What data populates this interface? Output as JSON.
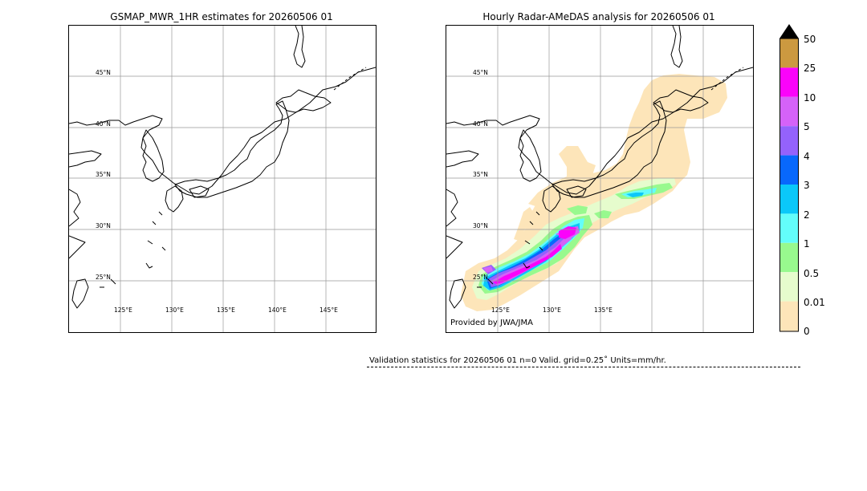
{
  "left_panel": {
    "title": "GSMAP_MWR_1HR estimates for 20260506 01",
    "lat_labels": [
      "45°N",
      "40°N",
      "35°N",
      "30°N",
      "25°N"
    ],
    "lon_labels": [
      "125°E",
      "130°E",
      "135°E",
      "140°E",
      "145°E"
    ]
  },
  "right_panel": {
    "title": "Hourly Radar-AMeDAS analysis for 20260506 01",
    "credit": "Provided by JWA/JMA",
    "lat_labels": [
      "45°N",
      "40°N",
      "35°N",
      "30°N",
      "25°N"
    ],
    "lon_labels": [
      "125°E",
      "130°E",
      "135°E"
    ]
  },
  "colorbar": {
    "labels": [
      "50",
      "25",
      "10",
      "5",
      "4",
      "3",
      "2",
      "1",
      "0.5",
      "0.01",
      "0"
    ],
    "colors_bottom_to_top": [
      "#fde5b9",
      "#e6fccd",
      "#98f98e",
      "#63fdfb",
      "#0bc8f9",
      "#0868fc",
      "#9462fc",
      "#d562f8",
      "#fb03fa",
      "#cc9940"
    ],
    "extend_arrow_color": "#000000"
  },
  "validation": {
    "text": "Validation statistics for 20260506 01  n=0 Valid. grid=0.25˚ Units=mm/hr."
  }
}
